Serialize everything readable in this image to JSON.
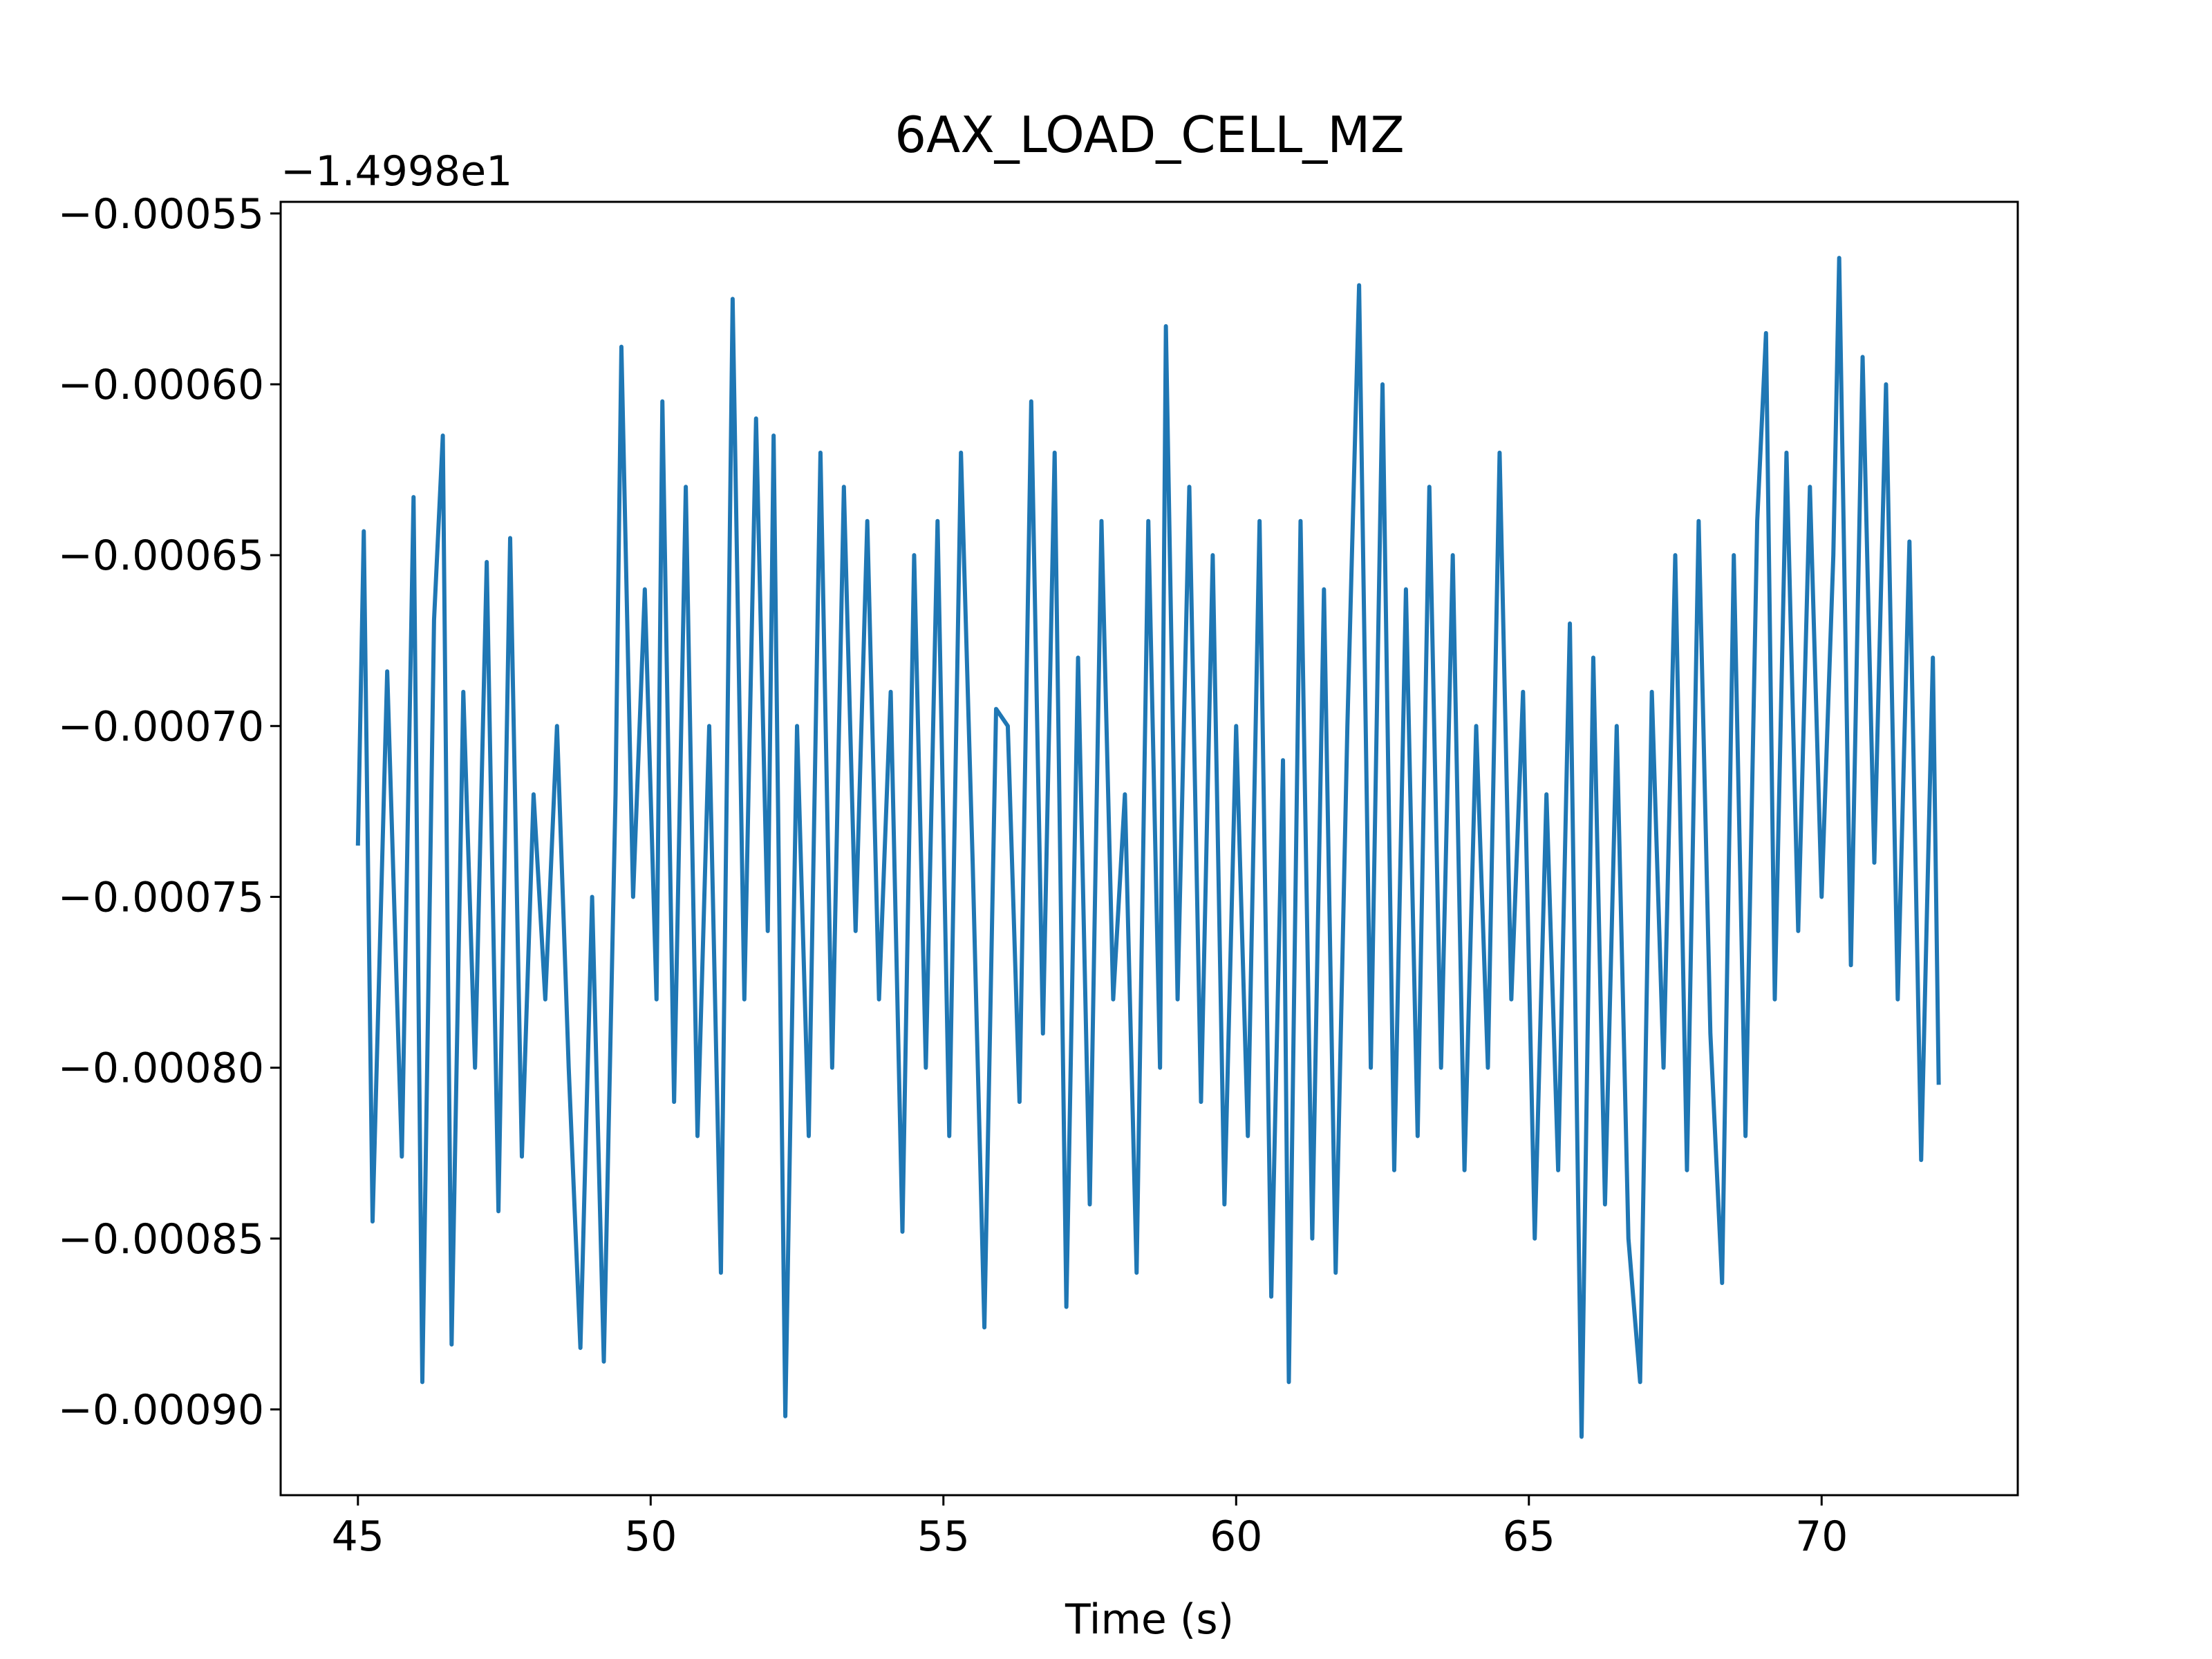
{
  "chart_data": {
    "type": "line",
    "title": "6AX_LOAD_CELL_MZ",
    "x_label": "Time (s)",
    "y_offset_label": "−1.4998e1",
    "x": [
      45.0,
      45.1,
      45.25,
      45.5,
      45.75,
      45.95,
      46.1,
      46.3,
      46.45,
      46.6,
      46.8,
      47.0,
      47.2,
      47.4,
      47.6,
      47.8,
      48.0,
      48.2,
      48.4,
      48.6,
      48.8,
      49.0,
      49.2,
      49.4,
      49.5,
      49.7,
      49.9,
      50.1,
      50.2,
      50.4,
      50.6,
      50.8,
      51.0,
      51.2,
      51.4,
      51.6,
      51.8,
      52.0,
      52.1,
      52.3,
      52.5,
      52.7,
      52.9,
      53.1,
      53.3,
      53.5,
      53.7,
      53.9,
      54.1,
      54.3,
      54.5,
      54.7,
      54.9,
      55.1,
      55.3,
      55.5,
      55.7,
      55.9,
      56.1,
      56.3,
      56.5,
      56.7,
      56.9,
      57.1,
      57.3,
      57.5,
      57.7,
      57.9,
      58.1,
      58.3,
      58.5,
      58.7,
      58.8,
      59.0,
      59.2,
      59.4,
      59.6,
      59.8,
      60.0,
      60.2,
      60.4,
      60.6,
      60.8,
      60.9,
      61.1,
      61.3,
      61.5,
      61.7,
      61.9,
      62.1,
      62.3,
      62.5,
      62.7,
      62.9,
      63.1,
      63.3,
      63.5,
      63.7,
      63.9,
      64.1,
      64.3,
      64.5,
      64.7,
      64.9,
      65.1,
      65.3,
      65.5,
      65.7,
      65.9,
      66.1,
      66.3,
      66.5,
      66.7,
      66.9,
      67.1,
      67.3,
      67.5,
      67.7,
      67.9,
      68.1,
      68.3,
      68.5,
      68.7,
      68.9,
      69.05,
      69.2,
      69.4,
      69.6,
      69.8,
      70.0,
      70.2,
      70.3,
      70.5,
      70.7,
      70.9,
      71.1,
      71.3,
      71.5,
      71.7,
      71.9,
      72.0
    ],
    "series": [
      {
        "color": "#1f77b4",
        "values": [
          -0.000735,
          -0.000643,
          -0.000845,
          -0.000684,
          -0.000826,
          -0.000633,
          -0.000892,
          -0.000669,
          -0.000615,
          -0.000881,
          -0.00069,
          -0.0008,
          -0.000652,
          -0.000842,
          -0.000645,
          -0.000826,
          -0.00072,
          -0.00078,
          -0.0007,
          -0.0008,
          -0.000882,
          -0.00075,
          -0.000886,
          -0.00072,
          -0.000589,
          -0.00075,
          -0.00066,
          -0.00078,
          -0.000605,
          -0.00081,
          -0.00063,
          -0.00082,
          -0.0007,
          -0.00086,
          -0.000575,
          -0.00078,
          -0.00061,
          -0.00076,
          -0.000615,
          -0.000902,
          -0.0007,
          -0.00082,
          -0.00062,
          -0.0008,
          -0.00063,
          -0.00076,
          -0.00064,
          -0.00078,
          -0.00069,
          -0.000848,
          -0.00065,
          -0.0008,
          -0.00064,
          -0.00082,
          -0.00062,
          -0.00074,
          -0.000876,
          -0.000695,
          -0.0007,
          -0.00081,
          -0.000605,
          -0.00079,
          -0.00062,
          -0.00087,
          -0.00068,
          -0.00084,
          -0.00064,
          -0.00078,
          -0.00072,
          -0.00086,
          -0.00064,
          -0.0008,
          -0.000583,
          -0.00078,
          -0.00063,
          -0.00081,
          -0.00065,
          -0.00084,
          -0.0007,
          -0.00082,
          -0.00064,
          -0.000867,
          -0.00071,
          -0.000892,
          -0.00064,
          -0.00085,
          -0.00066,
          -0.00086,
          -0.0007,
          -0.000571,
          -0.0008,
          -0.0006,
          -0.00083,
          -0.00066,
          -0.00082,
          -0.00063,
          -0.0008,
          -0.00065,
          -0.00083,
          -0.0007,
          -0.0008,
          -0.00062,
          -0.00078,
          -0.00069,
          -0.00085,
          -0.00072,
          -0.00083,
          -0.00067,
          -0.000908,
          -0.00068,
          -0.00084,
          -0.0007,
          -0.00085,
          -0.000892,
          -0.00069,
          -0.0008,
          -0.00065,
          -0.00083,
          -0.00064,
          -0.00079,
          -0.000863,
          -0.00065,
          -0.00082,
          -0.00064,
          -0.000585,
          -0.00078,
          -0.00062,
          -0.00076,
          -0.00063,
          -0.00075,
          -0.00065,
          -0.000563,
          -0.00077,
          -0.000592,
          -0.00074,
          -0.0006,
          -0.00078,
          -0.000646,
          -0.000827,
          -0.00068,
          -0.000805
        ]
      }
    ],
    "xlim": [
      43.68,
      73.35
    ],
    "ylim": [
      -0.0009251,
      -0.0005466
    ],
    "xticks": [
      45,
      50,
      55,
      60,
      65,
      70
    ],
    "yticks": [
      {
        "value": -0.00055,
        "label": "−0.00055"
      },
      {
        "value": -0.0006,
        "label": "−0.00060"
      },
      {
        "value": -0.00065,
        "label": "−0.00065"
      },
      {
        "value": -0.0007,
        "label": "−0.00070"
      },
      {
        "value": -0.00075,
        "label": "−0.00075"
      },
      {
        "value": -0.0008,
        "label": "−0.00080"
      },
      {
        "value": -0.00085,
        "label": "−0.00085"
      },
      {
        "value": -0.0009,
        "label": "−0.00090"
      }
    ]
  }
}
